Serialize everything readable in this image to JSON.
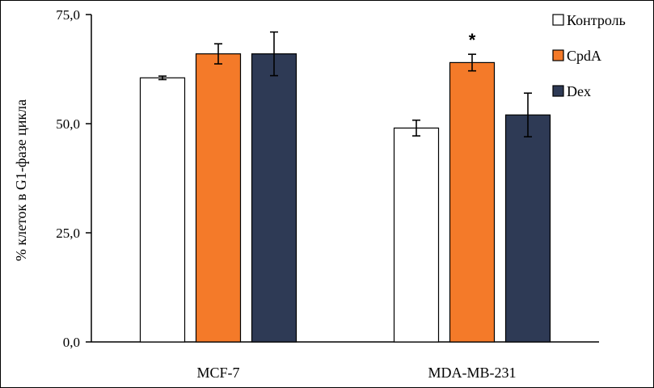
{
  "chart_data": {
    "type": "bar",
    "categories": [
      "MCF-7",
      "MDA-MB-231"
    ],
    "series": [
      {
        "name": "Контроль",
        "color": "#ffffff",
        "values": [
          60.5,
          49.0
        ],
        "errors": [
          0.4,
          1.8
        ]
      },
      {
        "name": "CpdA",
        "color": "#f47a29",
        "values": [
          66.0,
          64.0
        ],
        "errors": [
          2.3,
          1.9
        ]
      },
      {
        "name": "Dex",
        "color": "#2e3a55",
        "values": [
          66.0,
          52.0
        ],
        "errors": [
          5.0,
          5.0
        ]
      }
    ],
    "annotations": [
      {
        "text": "*",
        "category": "MDA-MB-231",
        "series": "CpdA"
      }
    ],
    "ylabel": "% клеток в G1-фазе цикла",
    "xlabel": "",
    "ylim": [
      0,
      75
    ],
    "yticks": [
      "0,0",
      "25,0",
      "50,0",
      "75,0"
    ],
    "ytick_values": [
      0,
      25,
      50,
      75
    ],
    "grid": false,
    "legend_position": "top-right"
  }
}
